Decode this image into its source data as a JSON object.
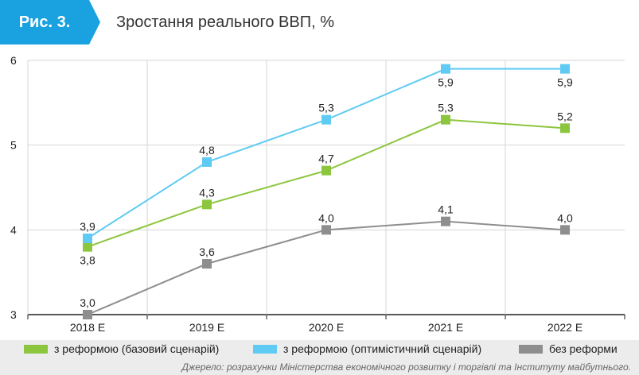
{
  "header": {
    "figure_label": "Рис. 3.",
    "title": "Зростання реального ВВП, %"
  },
  "colors": {
    "accent": "#1aa1e0",
    "green": "#8cc63f",
    "light_blue": "#5fcbf2",
    "gray": "#8e8e8e"
  },
  "chart_data": {
    "type": "line",
    "categories": [
      "2018 Е",
      "2019 Е",
      "2020 Е",
      "2021 Е",
      "2022 Е"
    ],
    "ylim": [
      3,
      6
    ],
    "yticks": [
      "3",
      "4",
      "5",
      "6"
    ],
    "grid": true,
    "series": [
      {
        "name": "з реформою (базовий сценарій)",
        "color": "#8cc63f",
        "values": [
          3.8,
          4.3,
          4.7,
          5.3,
          5.2
        ],
        "labels": [
          "3,8",
          "4,3",
          "4,7",
          "5,3",
          "5,2"
        ]
      },
      {
        "name": "з реформою (оптимістичний сценарій)",
        "color": "#5fcbf2",
        "values": [
          3.9,
          4.8,
          5.3,
          5.9,
          5.9
        ],
        "labels": [
          "3,9",
          "4,8",
          "5,3",
          "5,9",
          "5,9"
        ]
      },
      {
        "name": "без реформи",
        "color": "#8e8e8e",
        "values": [
          3.0,
          3.6,
          4.0,
          4.1,
          4.0
        ],
        "labels": [
          "3,0",
          "3,6",
          "4,0",
          "4,1",
          "4,0"
        ]
      }
    ]
  },
  "legend": {
    "items": [
      {
        "label": "з реформою (базовий сценарій)",
        "color": "#8cc63f"
      },
      {
        "label": "з реформою (оптимістичний сценарій)",
        "color": "#5fcbf2"
      },
      {
        "label": "без реформи",
        "color": "#8e8e8e"
      }
    ]
  },
  "source": "Джерело: розрахунки Міністерства економічного розвитку і торгівлі та Інституту майбутнього."
}
